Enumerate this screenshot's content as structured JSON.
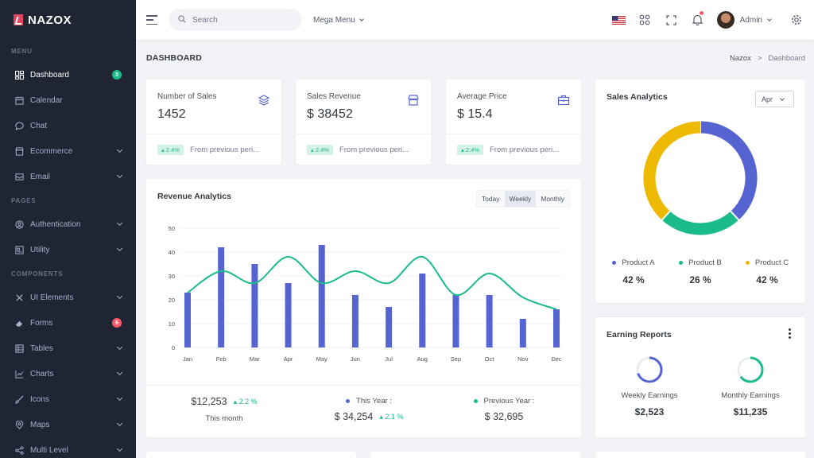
{
  "brand": {
    "name": "NAZOX"
  },
  "sidebar": {
    "sections": [
      {
        "title": "MENU"
      },
      {
        "title": "PAGES"
      },
      {
        "title": "COMPONENTS"
      }
    ],
    "items": [
      {
        "label": "Dashboard",
        "icon": "dashboard-icon",
        "badge": "3"
      },
      {
        "label": "Calendar",
        "icon": "calendar-icon"
      },
      {
        "label": "Chat",
        "icon": "chat-icon"
      },
      {
        "label": "Ecommerce",
        "icon": "store-icon"
      },
      {
        "label": "Email",
        "icon": "mail-icon"
      },
      {
        "label": "Authentication",
        "icon": "user-circle-icon"
      },
      {
        "label": "Utility",
        "icon": "profile-icon"
      },
      {
        "label": "UI Elements",
        "icon": "tools-icon"
      },
      {
        "label": "Forms",
        "icon": "eraser-icon",
        "badge": "6"
      },
      {
        "label": "Tables",
        "icon": "table-icon"
      },
      {
        "label": "Charts",
        "icon": "chart-icon"
      },
      {
        "label": "Icons",
        "icon": "brush-icon"
      },
      {
        "label": "Maps",
        "icon": "map-pin-icon"
      },
      {
        "label": "Multi Level",
        "icon": "share-icon"
      }
    ]
  },
  "topbar": {
    "search_placeholder": "Search",
    "mega_menu": "Mega Menu",
    "user_name": "Admin"
  },
  "page": {
    "title": "DASHBOARD",
    "breadcrumb": [
      "Nazox",
      ">",
      "Dashboard"
    ]
  },
  "stats": [
    {
      "label": "Number of Sales",
      "value": "1452",
      "change": "2.4%",
      "note": "From previous peri...",
      "icon": "layers-icon"
    },
    {
      "label": "Sales Revenue",
      "value": "$ 38452",
      "change": "2.4%",
      "note": "From previous peri...",
      "icon": "store-icon"
    },
    {
      "label": "Average Price",
      "value": "$ 15.4",
      "change": "2.4%",
      "note": "From previous peri...",
      "icon": "briefcase-icon"
    }
  ],
  "revenue": {
    "title": "Revenue Analytics",
    "periods": [
      "Today",
      "Weekly",
      "Monthly"
    ],
    "active_period": "Weekly",
    "footer": {
      "this_month_value": "$12,253",
      "this_month_change": "2.2 %",
      "this_month_label": "This month",
      "this_year_label": "This Year :",
      "this_year_value": "$ 34,254",
      "this_year_change": "2.1 %",
      "prev_year_label": "Previous Year :",
      "prev_year_value": "$ 32,695"
    }
  },
  "chart_data": [
    {
      "type": "bar",
      "categories": [
        "Jan",
        "Feb",
        "Mar",
        "Apr",
        "May",
        "Jun",
        "Jul",
        "Aug",
        "Sep",
        "Oct",
        "Nov",
        "Dec"
      ],
      "series": [
        {
          "type": "bar",
          "values": [
            23,
            42,
            35,
            27,
            43,
            22,
            17,
            31,
            22,
            22,
            12,
            16
          ],
          "color": "#5664d2"
        },
        {
          "type": "line",
          "values": [
            23,
            32,
            27,
            38,
            27,
            32,
            27,
            38,
            22,
            31,
            21,
            16
          ],
          "color": "#1cbb8c"
        }
      ],
      "ylim": [
        0,
        50
      ],
      "yticks": [
        0,
        10,
        20,
        30,
        40,
        50
      ],
      "grid": true
    },
    {
      "type": "pie",
      "title": "Sales Analytics",
      "labels": [
        "Product A",
        "Product B",
        "Product C"
      ],
      "values": [
        42,
        26,
        42
      ],
      "value_labels": [
        "42 %",
        "26 %",
        "42 %"
      ],
      "colors": [
        "#5664d2",
        "#1cbb8c",
        "#eeb902"
      ],
      "filter": "Apr"
    }
  ],
  "earnings": {
    "title": "Earning Reports",
    "items": [
      {
        "label": "Weekly Earnings",
        "value": "$2,523",
        "progress": 0.7,
        "color": "#5664d2"
      },
      {
        "label": "Monthly Earnings",
        "value": "$11,235",
        "progress": 0.65,
        "color": "#1cbb8c"
      }
    ]
  }
}
